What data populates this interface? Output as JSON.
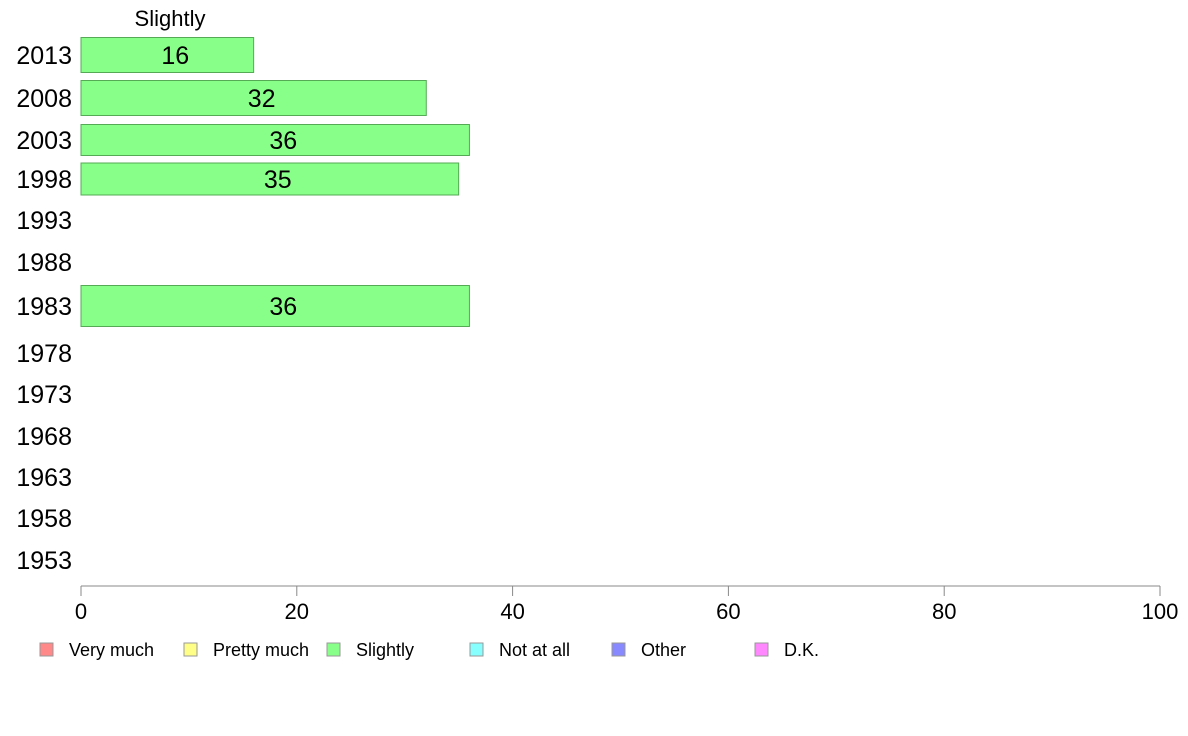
{
  "chart_data": {
    "type": "bar",
    "orientation": "horizontal",
    "series_header": "Slightly",
    "categories": [
      "2013",
      "2008",
      "2003",
      "1998",
      "1993",
      "1988",
      "1983",
      "1978",
      "1973",
      "1968",
      "1963",
      "1958",
      "1953"
    ],
    "series": [
      {
        "values": [
          16,
          32,
          36,
          35,
          null,
          null,
          36,
          null,
          null,
          null,
          null,
          null,
          null
        ]
      }
    ],
    "xlim": [
      0,
      100
    ],
    "xticks": [
      "0",
      "20",
      "40",
      "60",
      "80",
      "100"
    ],
    "grid": false,
    "legend": {
      "placement": "bottom",
      "items": [
        {
          "label": "Very much",
          "color": "#ff8888"
        },
        {
          "label": "Pretty much",
          "color": "#ffff88"
        },
        {
          "label": "Slightly",
          "color": "#88ff88"
        },
        {
          "label": "Not at all",
          "color": "#88ffff"
        },
        {
          "label": "Other",
          "color": "#8888ff"
        },
        {
          "label": "D.K.",
          "color": "#ff88ff"
        }
      ]
    },
    "bar_color": "#88ff88",
    "bar_stroke": "#55aa55"
  }
}
